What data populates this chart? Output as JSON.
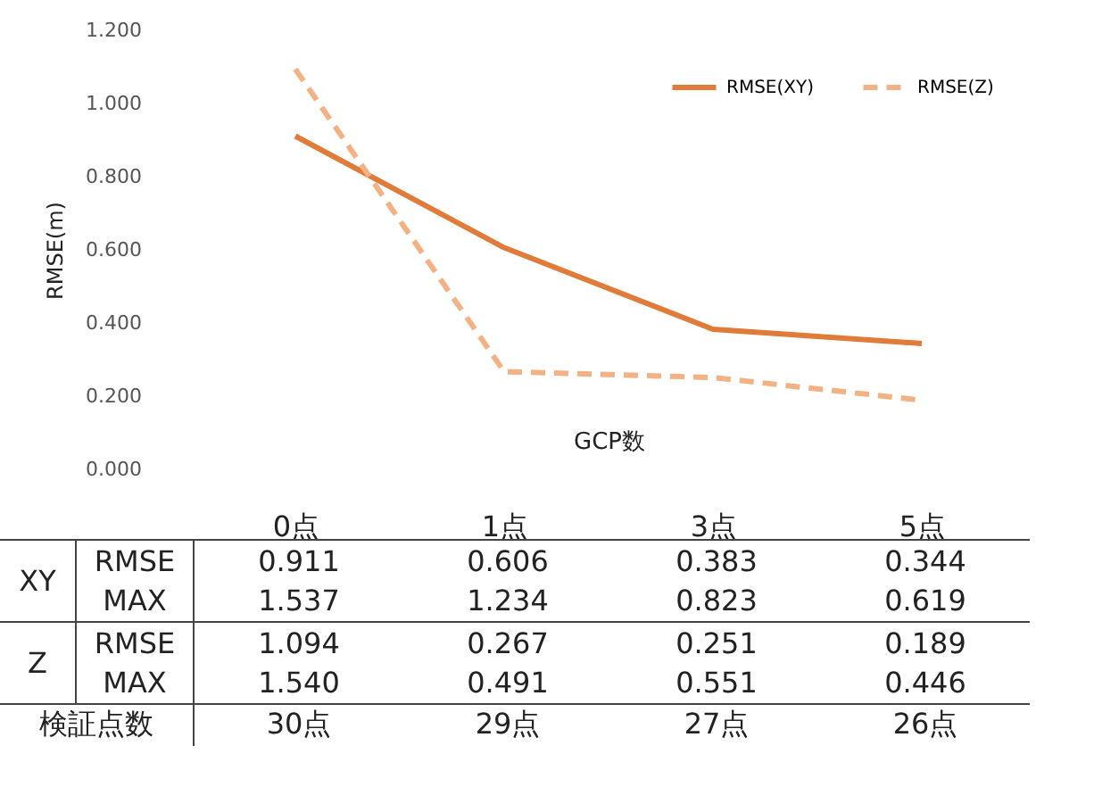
{
  "chart_data": {
    "type": "line",
    "xlabel": "GCP数",
    "ylabel": "RMSE(m)",
    "categories": [
      "0点",
      "1点",
      "3点",
      "5点"
    ],
    "series": [
      {
        "name": "RMSE(XY)",
        "color": "#e07b39",
        "line_style": "solid",
        "values": [
          0.911,
          0.606,
          0.383,
          0.344
        ]
      },
      {
        "name": "RMSE(Z)",
        "color": "#f4b183",
        "line_style": "dashed",
        "values": [
          1.094,
          0.267,
          0.251,
          0.189
        ]
      }
    ],
    "ylim": [
      0,
      1.2
    ],
    "yticks": [
      {
        "value": 0,
        "label": "0.000"
      },
      {
        "value": 0.2,
        "label": "0.200"
      },
      {
        "value": 0.4,
        "label": "0.400"
      },
      {
        "value": 0.6,
        "label": "0.600"
      },
      {
        "value": 0.8,
        "label": "0.800"
      },
      {
        "value": 1,
        "label": "1.000"
      },
      {
        "value": 1.2,
        "label": "1.200"
      }
    ],
    "grid": false,
    "legend": "top right",
    "marker": "none",
    "data_labels": true,
    "annotations": [
      "XY",
      "Z",
      "RMSE",
      "MAX",
      "検証点数",
      "1.537",
      "1.234",
      "0.823",
      "0.619",
      "1.540",
      "0.491",
      "0.551",
      "0.446",
      "30点",
      "29点",
      "27点",
      "26点"
    ]
  }
}
